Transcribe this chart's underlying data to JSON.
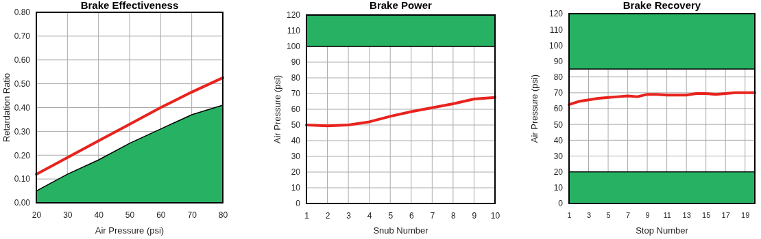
{
  "chart_data": [
    {
      "type": "line",
      "title": "Brake Effectiveness",
      "xlabel": "Air Pressure (psi)",
      "ylabel": "Retardation Ratio",
      "x": [
        20,
        30,
        40,
        50,
        60,
        70,
        80
      ],
      "xlim": [
        20,
        80
      ],
      "xticks": [
        20,
        30,
        40,
        50,
        60,
        70,
        80
      ],
      "ylim": [
        0,
        0.8
      ],
      "yticks": [
        {
          "value": 0,
          "label": "0.00"
        },
        {
          "value": 0.1,
          "label": "0.10"
        },
        {
          "value": 0.2,
          "label": "0.20"
        },
        {
          "value": 0.3,
          "label": "0.30"
        },
        {
          "value": 0.4,
          "label": "0.40"
        },
        {
          "value": 0.5,
          "label": "0.50"
        },
        {
          "value": 0.6,
          "label": "0.60"
        },
        {
          "value": 0.7,
          "label": "0.70"
        },
        {
          "value": 0.8,
          "label": "0.80"
        }
      ],
      "grid": true,
      "series": [
        {
          "type": "area",
          "color": "#26b163",
          "values": [
            0.05,
            0.12,
            0.18,
            0.25,
            0.31,
            0.37,
            0.41
          ]
        },
        {
          "type": "line",
          "color": "#e8231e",
          "values": [
            0.12,
            0.19,
            0.26,
            0.33,
            0.4,
            0.465,
            0.525
          ]
        }
      ]
    },
    {
      "type": "line",
      "title": "Brake Power",
      "xlabel": "Snub Number",
      "ylabel": "Air Pressure (psi)",
      "x": [
        1,
        2,
        3,
        4,
        5,
        6,
        7,
        8,
        9,
        10
      ],
      "xlim": [
        1,
        10
      ],
      "xticks": [
        1,
        2,
        3,
        4,
        5,
        6,
        7,
        8,
        9,
        10
      ],
      "ylim": [
        0,
        120
      ],
      "yticks": [
        0,
        10,
        20,
        30,
        40,
        50,
        60,
        70,
        80,
        90,
        100,
        110,
        120
      ],
      "grid": true,
      "bands": [
        {
          "axis": "y",
          "from": 100,
          "to": 120,
          "color": "#26b163"
        }
      ],
      "series": [
        {
          "type": "line",
          "color": "#e8231e",
          "values": [
            50,
            49.5,
            50,
            52,
            55.5,
            58.5,
            61,
            63.5,
            66.5,
            67.5
          ]
        }
      ]
    },
    {
      "type": "line",
      "title": "Brake Recovery",
      "xlabel": "Stop Number",
      "ylabel": "Air Pressure (psi)",
      "x": [
        1,
        2,
        3,
        4,
        5,
        6,
        7,
        8,
        9,
        10,
        11,
        12,
        13,
        14,
        15,
        16,
        17,
        18,
        19,
        20
      ],
      "xlim": [
        1,
        20
      ],
      "xticks": [
        1,
        3,
        5,
        7,
        9,
        11,
        13,
        15,
        17,
        19
      ],
      "ylim": [
        0,
        120
      ],
      "yticks": [
        0,
        10,
        20,
        30,
        40,
        50,
        60,
        70,
        80,
        90,
        100,
        110,
        120
      ],
      "grid": true,
      "bands": [
        {
          "axis": "y",
          "from": 0,
          "to": 20,
          "color": "#26b163"
        },
        {
          "axis": "y",
          "from": 85,
          "to": 120,
          "color": "#26b163"
        }
      ],
      "series": [
        {
          "type": "line",
          "color": "#e8231e",
          "values": [
            62.5,
            64.5,
            65.5,
            66.5,
            67,
            67.5,
            68,
            67.5,
            69,
            69,
            68.5,
            68.5,
            68.5,
            69.5,
            69.5,
            69,
            69.5,
            70,
            70,
            70
          ]
        }
      ]
    }
  ]
}
